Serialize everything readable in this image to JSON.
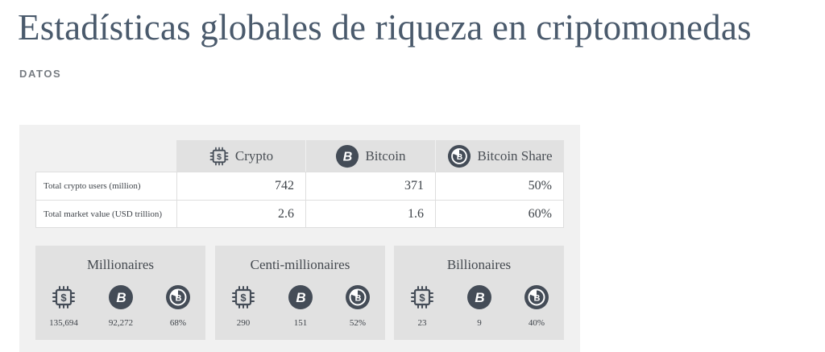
{
  "header": {
    "title": "Estadísticas globales de riqueza en criptomonedas",
    "section": "DATOS"
  },
  "table": {
    "columns": [
      {
        "label": "Crypto",
        "icon": "crypto-chip-icon"
      },
      {
        "label": "Bitcoin",
        "icon": "bitcoin-icon"
      },
      {
        "label": "Bitcoin Share",
        "icon": "bitcoin-share-icon"
      }
    ],
    "rows": [
      {
        "label": "Total crypto users (million)",
        "values": [
          "742",
          "371",
          "50%"
        ]
      },
      {
        "label": "Total market value (USD trillion)",
        "values": [
          "2.6",
          "1.6",
          "60%"
        ]
      }
    ]
  },
  "cards": [
    {
      "title": "Millionaires",
      "values": [
        "135,694",
        "92,272",
        "68%"
      ]
    },
    {
      "title": "Centi-millionaires",
      "values": [
        "290",
        "151",
        "52%"
      ]
    },
    {
      "title": "Billionaires",
      "values": [
        "23",
        "9",
        "40%"
      ]
    }
  ],
  "colors": {
    "icon": "#444c57",
    "header_bg": "#e1e1e1",
    "panel_bg": "#f1f1f1"
  }
}
